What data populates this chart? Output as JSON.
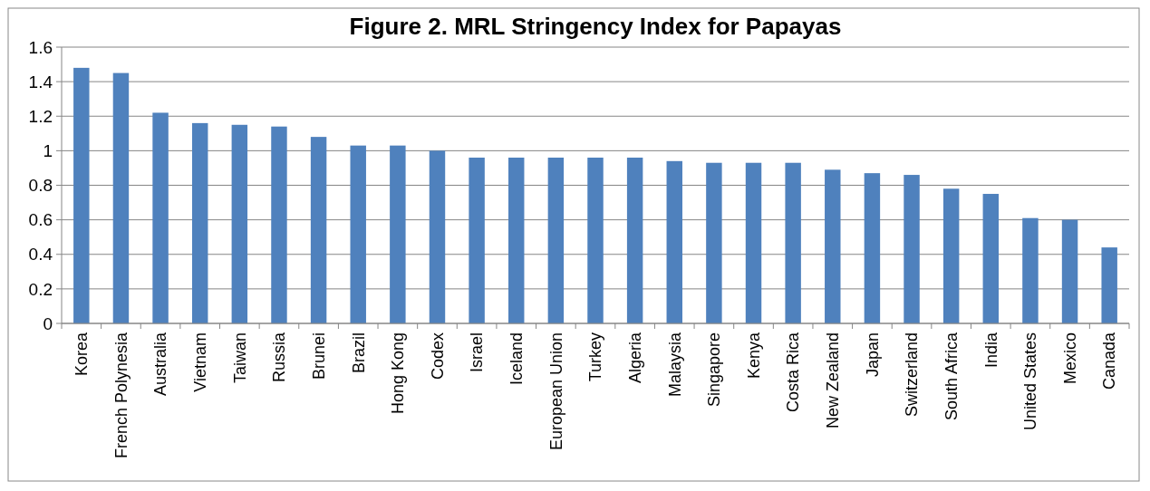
{
  "chart_data": {
    "type": "bar",
    "title": "Figure 2. MRL Stringency Index for Papayas",
    "categories": [
      "Korea",
      "French Polynesia",
      "Australia",
      "Vietnam",
      "Taiwan",
      "Russia",
      "Brunei",
      "Brazil",
      "Hong Kong",
      "Codex",
      "Israel",
      "Iceland",
      "European Union",
      "Turkey",
      "Algeria",
      "Malaysia",
      "Singapore",
      "Kenya",
      "Costa Rica",
      "New Zealand",
      "Japan",
      "Switzerland",
      "South Africa",
      "India",
      "United States",
      "Mexico",
      "Canada"
    ],
    "values": [
      1.48,
      1.45,
      1.22,
      1.16,
      1.15,
      1.14,
      1.08,
      1.03,
      1.03,
      1.0,
      0.96,
      0.96,
      0.96,
      0.96,
      0.96,
      0.94,
      0.93,
      0.93,
      0.93,
      0.89,
      0.87,
      0.86,
      0.78,
      0.75,
      0.61,
      0.6,
      0.44
    ],
    "color": "#4f81bd",
    "ylim": [
      0,
      1.6
    ],
    "yticks": [
      0,
      {
        "value": 0.2,
        "label": "0.2"
      },
      {
        "value": 0.4,
        "label": "0.4"
      },
      {
        "value": 0.6,
        "label": "0.6"
      },
      {
        "value": 0.8,
        "label": "0.8"
      },
      1,
      {
        "value": 1.2,
        "label": "1.2"
      },
      {
        "value": 1.4,
        "label": "1.4"
      },
      {
        "value": 1.6,
        "label": "1.6"
      }
    ],
    "grid": "y"
  }
}
